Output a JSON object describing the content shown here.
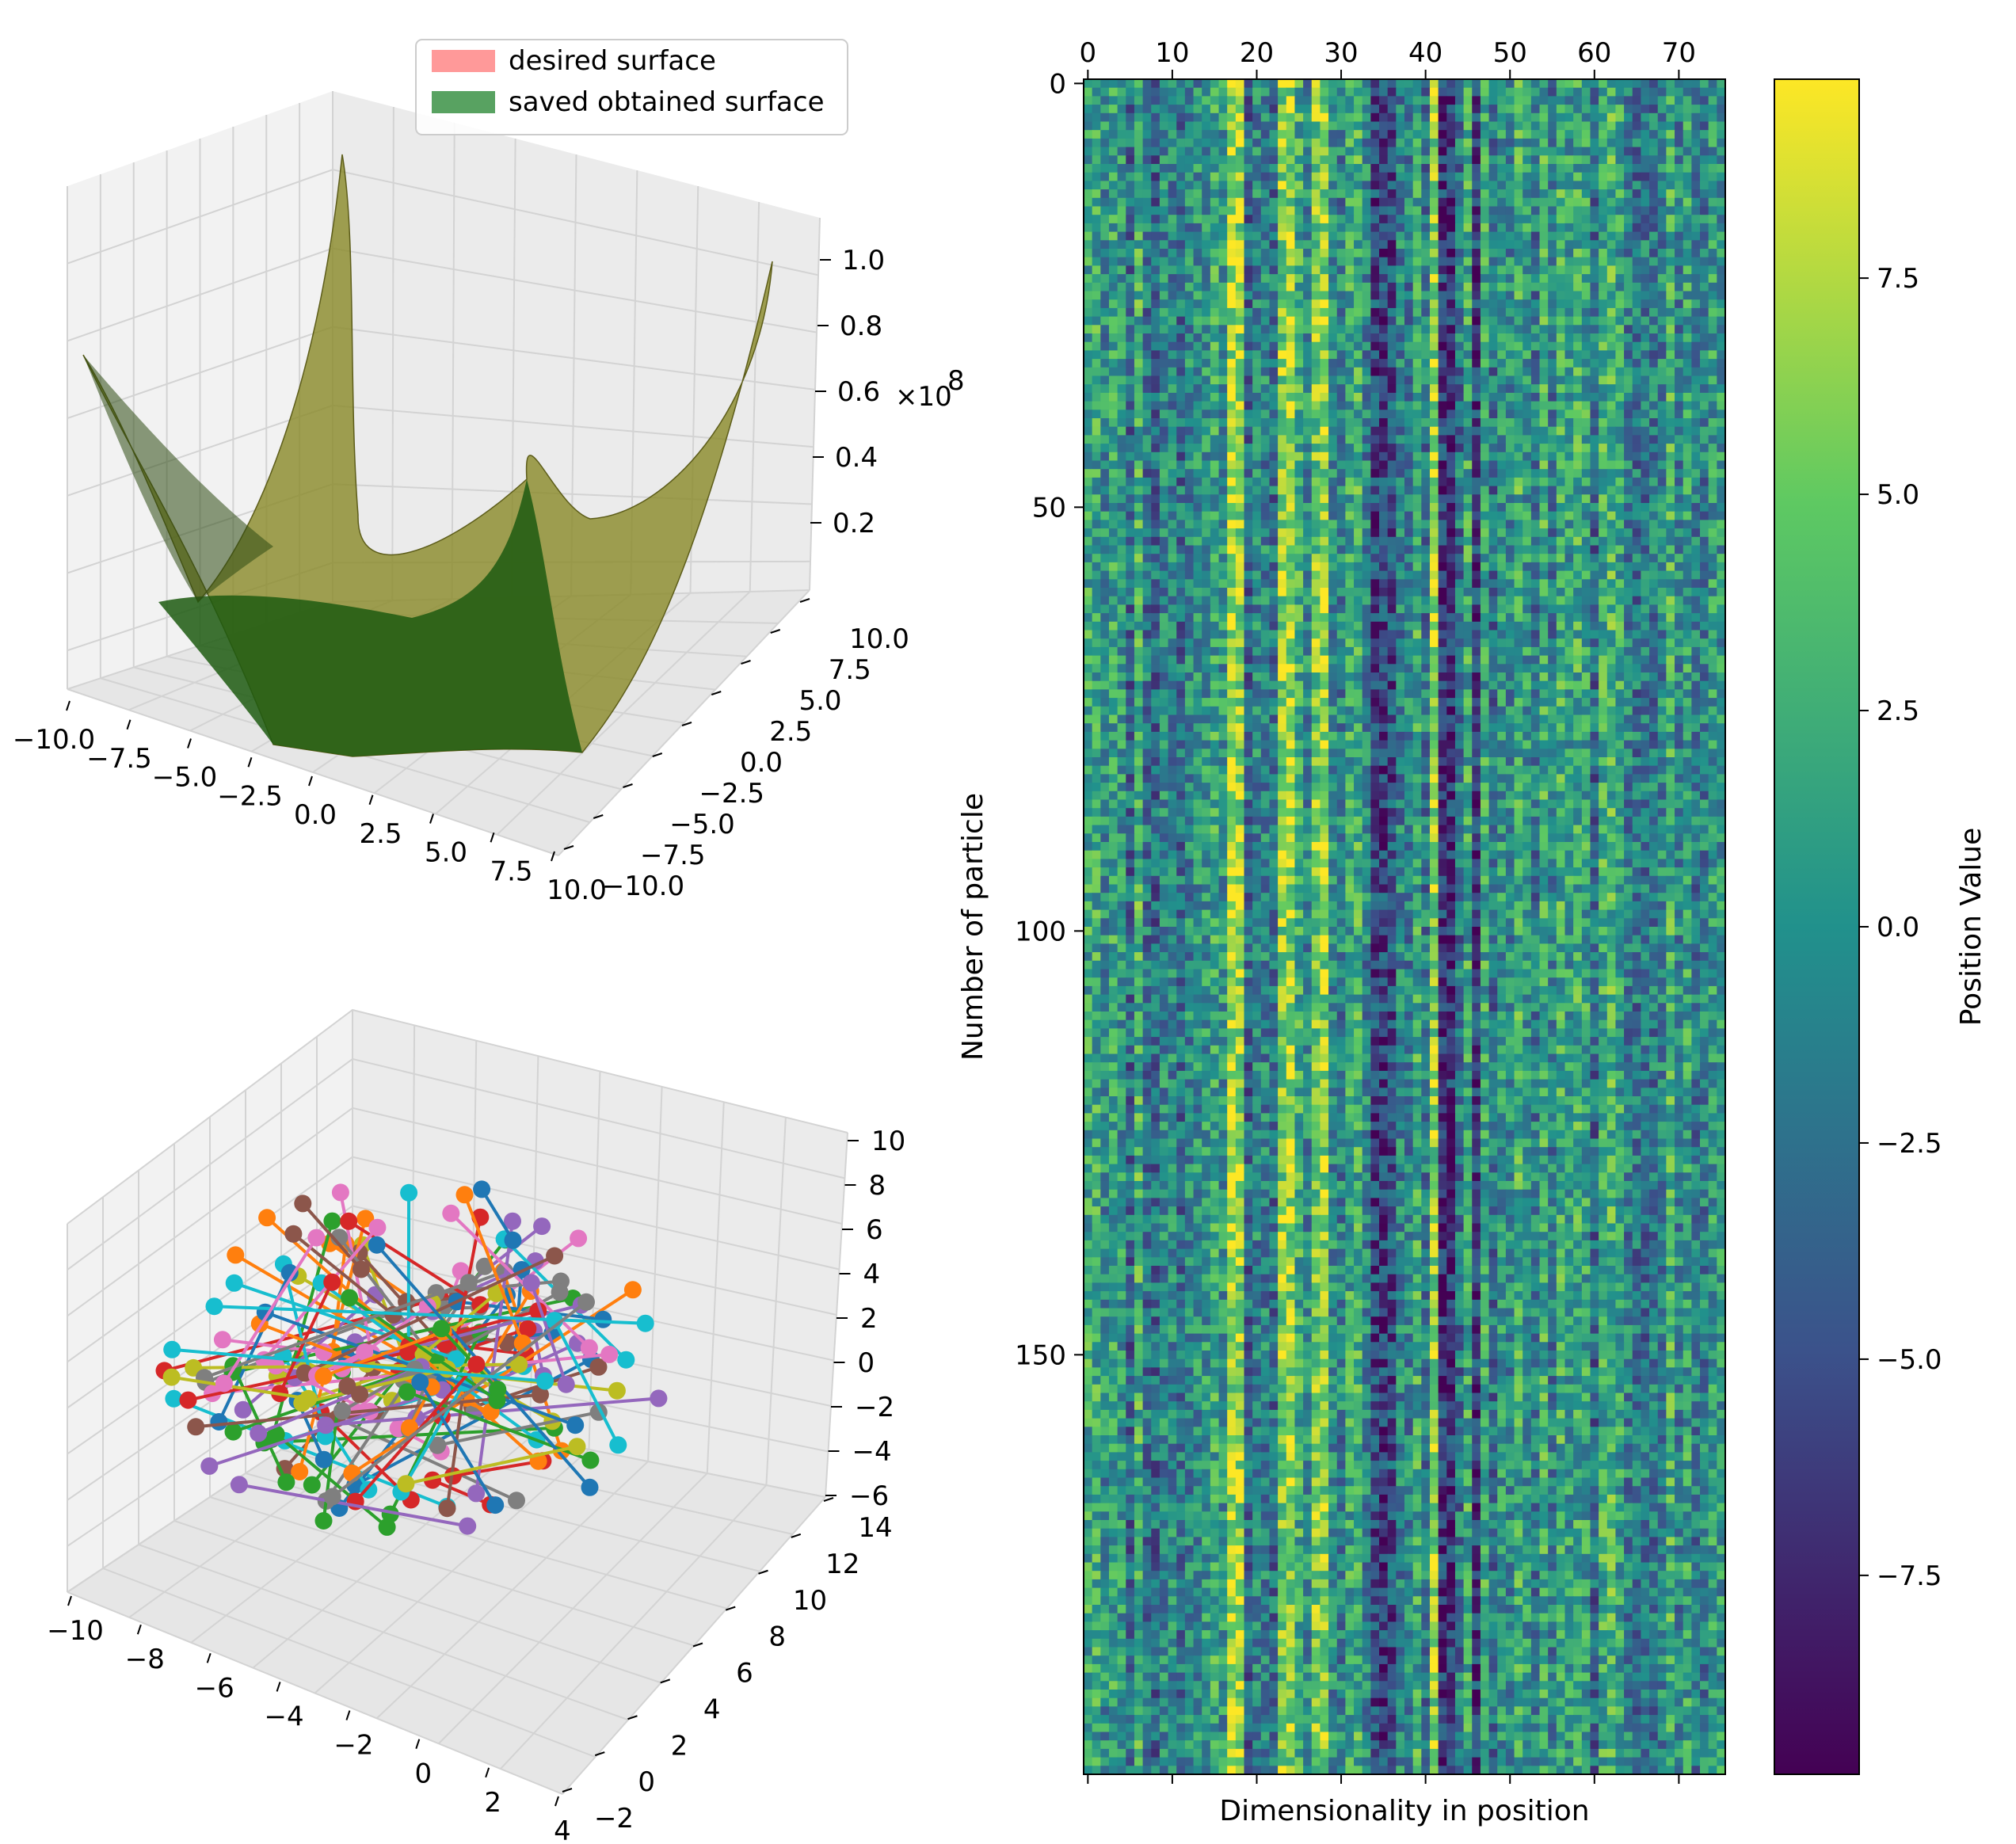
{
  "colors": {
    "desired": "#ff7f7f",
    "obtained": "#2e8b3a",
    "surface_fill": "#8b8b2c",
    "surface_dark": "#1d5a10",
    "pane": "#f2f2f2",
    "grid": "#d3d3d3"
  },
  "chart_data": [
    {
      "type": "surface3d",
      "legend": [
        {
          "name": "desired surface",
          "color": "#ff7f7f"
        },
        {
          "name": "saved obtained surface",
          "color": "#2e8b3a"
        }
      ],
      "x_ticks": [
        "−10.0",
        "−7.5",
        "−5.0",
        "−2.5",
        "0.0",
        "2.5",
        "5.0",
        "7.5",
        "10.0"
      ],
      "y_ticks": [
        "10.0",
        "7.5",
        "5.0",
        "2.5",
        "0.0",
        "−2.5",
        "−5.0",
        "−7.5",
        "−10.0"
      ],
      "z_ticks": [
        "1.0",
        "0.8",
        "0.6",
        "0.4",
        "0.2"
      ],
      "z_offset": "×10",
      "z_offset_exp": "8",
      "xlim": [
        -10,
        10
      ],
      "ylim": [
        -10,
        10
      ],
      "zlim": [
        0,
        1.05
      ]
    },
    {
      "type": "scatter3d-lines",
      "x_ticks": [
        "−10",
        "−8",
        "−6",
        "−4",
        "−2",
        "0",
        "2",
        "4"
      ],
      "y_ticks": [
        "14",
        "12",
        "10",
        "8",
        "6",
        "4",
        "2",
        "0",
        "−2"
      ],
      "z_ticks": [
        "10",
        "8",
        "6",
        "4",
        "2",
        "0",
        "−2",
        "−4",
        "−6"
      ],
      "xlim": [
        -10,
        4
      ],
      "ylim": [
        -2,
        14
      ],
      "zlim": [
        -6,
        10
      ],
      "series_colors": [
        "#1f77b4",
        "#ff7f0e",
        "#2ca02c",
        "#d62728",
        "#9467bd",
        "#8c564b",
        "#e377c2",
        "#7f7f7f",
        "#bcbd22",
        "#17becf"
      ],
      "segments": 120
    },
    {
      "type": "heatmap",
      "xlabel": "Dimensionality in position",
      "ylabel": "Number of particle",
      "x_ticks": [
        "0",
        "10",
        "20",
        "30",
        "40",
        "50",
        "60",
        "70"
      ],
      "y_ticks": [
        "0",
        "50",
        "100",
        "150"
      ],
      "columns": 76,
      "rows": 200,
      "colorbar": {
        "label": "Position Value",
        "ticks": [
          "7.5",
          "5.0",
          "2.5",
          "0.0",
          "−2.5",
          "−5.0",
          "−7.5"
        ],
        "range": [
          -9.8,
          9.8
        ]
      }
    }
  ]
}
